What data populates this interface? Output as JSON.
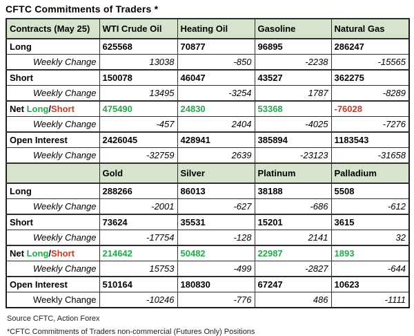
{
  "title": "CFTC Commitments of Traders *",
  "colors": {
    "header_bg": "#d6e3cd",
    "positive_green": "#22a84e",
    "negative_red": "#c23b27",
    "border": "#2e2e2e"
  },
  "net_label_parts": [
    {
      "text": "Net ",
      "color": "#000000"
    },
    {
      "text": "Long",
      "color": "#22a84e"
    },
    {
      "text": "/",
      "color": "#000000"
    },
    {
      "text": "Short",
      "color": "#c23b27"
    }
  ],
  "chart_data": {
    "type": "table",
    "title": "CFTC Commitments of Traders *",
    "sections": [
      {
        "header": [
          "Contracts (May 25)",
          "WTI Crude Oil",
          "Heating Oil",
          "Gasoline",
          "Natural Gas"
        ],
        "rows": [
          {
            "label": "Long",
            "type": "main",
            "values": [
              625568,
              70877,
              96895,
              286247
            ]
          },
          {
            "label": "Weekly Change",
            "type": "change",
            "italic_label": true,
            "values": [
              13038,
              -850,
              -2238,
              -15565
            ]
          },
          {
            "label": "Short",
            "type": "main",
            "values": [
              150078,
              46047,
              43527,
              362275
            ]
          },
          {
            "label": "Weekly Change",
            "type": "change",
            "italic_label": true,
            "values": [
              13495,
              -3254,
              1787,
              -8289
            ]
          },
          {
            "label": "Net Long/Short",
            "type": "net",
            "values": [
              475490,
              24830,
              53368,
              -76028
            ]
          },
          {
            "label": "Weekly Change",
            "type": "change",
            "italic_label": true,
            "values": [
              -457,
              2404,
              -4025,
              -7276
            ]
          },
          {
            "label": "Open Interest",
            "type": "main",
            "values": [
              2426045,
              428941,
              385894,
              1183543
            ]
          },
          {
            "label": "Weekly Change",
            "type": "change",
            "italic_label": true,
            "values": [
              -32759,
              2639,
              -23123,
              -31658
            ]
          }
        ]
      },
      {
        "header": [
          "",
          "Gold",
          "Silver",
          "Platinum",
          "Palladium"
        ],
        "rows": [
          {
            "label": "Long",
            "type": "main",
            "values": [
              288266,
              86013,
              38188,
              5508
            ]
          },
          {
            "label": "Weekly Change",
            "type": "change",
            "italic_label": true,
            "values": [
              -2001,
              -627,
              -686,
              -612
            ]
          },
          {
            "label": "Short",
            "type": "main",
            "values": [
              73624,
              35531,
              15201,
              3615
            ]
          },
          {
            "label": "Weekly Change",
            "type": "change",
            "italic_label": true,
            "values": [
              -17754,
              -128,
              2141,
              32
            ]
          },
          {
            "label": "Net Long/Short",
            "type": "net",
            "values": [
              214642,
              50482,
              22987,
              1893
            ]
          },
          {
            "label": "Weekly Change",
            "type": "change",
            "italic_label": true,
            "values": [
              15753,
              -499,
              -2827,
              -644
            ]
          },
          {
            "label": "Open Interest",
            "type": "main",
            "values": [
              510164,
              180830,
              67247,
              10623
            ]
          },
          {
            "label": "Weekly Change",
            "type": "change",
            "italic_label": false,
            "values": [
              -10246,
              -776,
              486,
              -1111
            ]
          }
        ]
      }
    ]
  },
  "footer": {
    "source": "Source CFTC, Action Forex",
    "note": "*CFTC Commitments of Traders non-commercial (Futures Only) Positions"
  }
}
